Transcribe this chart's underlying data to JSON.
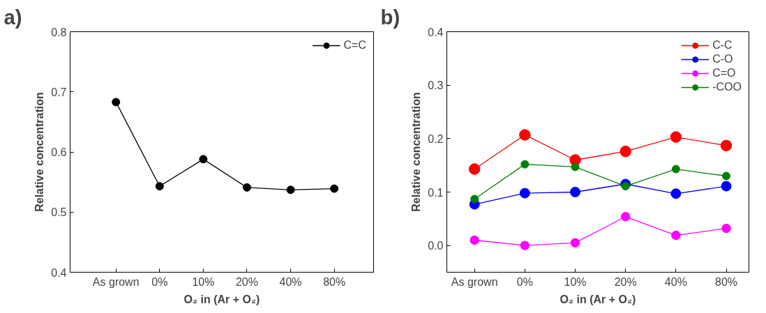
{
  "chart_data": [
    {
      "type": "line",
      "title": "a)",
      "xlabel": "O₂ in (Ar + O₂)",
      "ylabel": "Relative concentration",
      "categories": [
        "As grown",
        "0%",
        "10%",
        "20%",
        "40%",
        "80%"
      ],
      "series": [
        {
          "name": "C=C",
          "color": "#000000",
          "values": [
            0.683,
            0.543,
            0.588,
            0.541,
            0.537,
            0.539
          ]
        }
      ],
      "ylim": [
        0.4,
        0.8
      ],
      "yticks": [
        0.4,
        0.5,
        0.6,
        0.7,
        0.8
      ],
      "grid": false,
      "legend": "top right",
      "marker": "circle",
      "line_style": "solid"
    },
    {
      "type": "line",
      "title": "b)",
      "xlabel": "O₂ in (Ar + O₂)",
      "ylabel": "Relative concentration",
      "categories": [
        "As grown",
        "0%",
        "10%",
        "20%",
        "40%",
        "80%"
      ],
      "series": [
        {
          "name": "C-C",
          "color": "#ff0000",
          "values": [
            0.143,
            0.207,
            0.16,
            0.176,
            0.203,
            0.187
          ]
        },
        {
          "name": "C-O",
          "color": "#0000ff",
          "values": [
            0.077,
            0.098,
            0.1,
            0.115,
            0.097,
            0.111
          ]
        },
        {
          "name": "C=O",
          "color": "#ff00ff",
          "values": [
            0.01,
            0.0,
            0.005,
            0.054,
            0.019,
            0.032
          ]
        },
        {
          "name": "-COO",
          "color": "#008000",
          "values": [
            0.087,
            0.152,
            0.147,
            0.111,
            0.143,
            0.13
          ]
        }
      ],
      "ylim": [
        -0.05,
        0.4
      ],
      "yticks": [
        {
          "value": 0.0,
          "label": "0.0"
        },
        0.1,
        0.2,
        0.3,
        0.4
      ],
      "grid": false,
      "legend": "top right",
      "marker": "circle",
      "line_style": "solid"
    }
  ]
}
